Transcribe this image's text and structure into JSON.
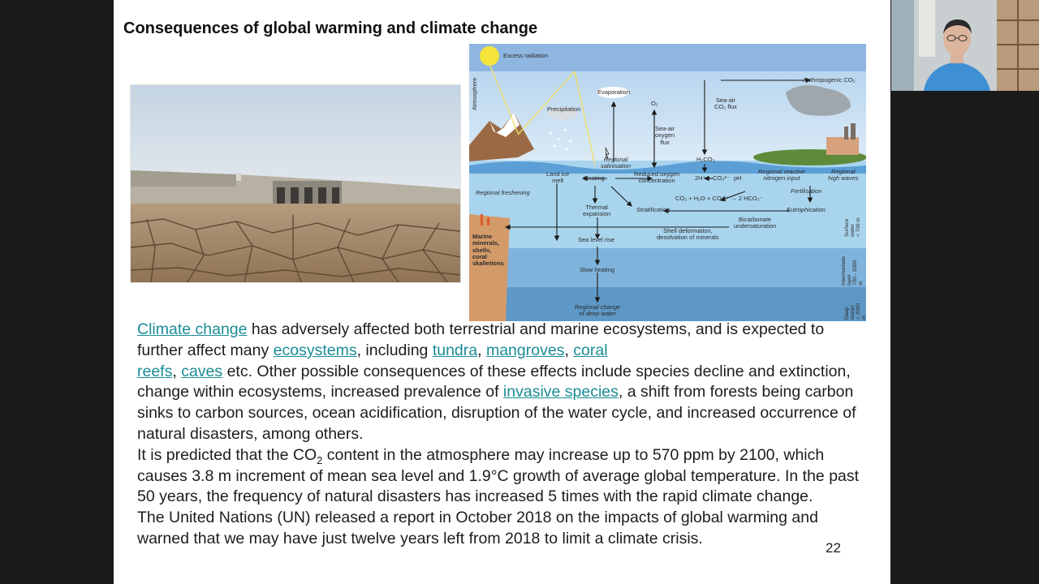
{
  "slide": {
    "title": "Consequences of global warming and climate change",
    "page_number": "22"
  },
  "diagram": {
    "labels": {
      "excess_radiation": "Excess radiation",
      "atmosphere": "Atmosphere",
      "precipitation": "Precipitation",
      "evaporation": "Evaporation",
      "o2": "O₂",
      "sea_air_oxygen_flux": "Sea-air\noxygen\nflux",
      "sea_air_co2_flux": "Sea-air\nCO₂ flux",
      "anthropogenic_co2": "Anthropogenic CO₂",
      "regional_salinisation": "Regional\nsalinisation",
      "land_ice_melt": "Land ice\nmelt",
      "heating": "Heating",
      "reduced_oxygen": "Reduced oxygen\nconcentration",
      "h2co3": "H₂CO₃",
      "carbonate_eq": "2H⁺ + CO₃²⁻",
      "ph": "pH",
      "regional_nitrogen": "Regional reactive\nnitrogen input",
      "regional_high_waves": "Regional\nhigh waves",
      "regional_freshening": "Regional freshening",
      "fertilisation": "Fertilisation",
      "co2_reaction": "CO₂ + H₂O + CO₃²⁻ → 2 HCO₃⁻",
      "thermal_expansion": "Thermal\nexpansion",
      "stratification": "Stratification",
      "eutrophication": "Eutrophication",
      "bicarbonate": "Bicarbonate\nundersaturation",
      "shell_deformation": "Shell deformation,\ndesolvation of minerals",
      "sea_level_rise": "Sea level rise",
      "marine_minerals": "Marine\nminerals,\nshells,\ncoral\nskalletions",
      "slow_heating": "Slow heating",
      "regional_change": "Regional change\nof deep water",
      "surface_water": "Surface water\n< 700 m",
      "intermediate": "Intermediate\nlayer\n700 - 2000 m",
      "deep_ocean": "Deep ocean\n> 2000 m"
    }
  },
  "body": {
    "p1": {
      "link_climate_change": "Climate change",
      "t1": " has adversely affected both terrestrial and marine ecosystems, and is expected to further affect many ",
      "link_ecosystems": "ecosystems",
      "t2": ", including ",
      "link_tundra": "tundra",
      "sep1": ", ",
      "link_mangroves": "mangroves",
      "sep2": ", ",
      "link_coral_reefs_1": "coral",
      "link_coral_reefs_2": "reefs",
      "sep3": ", ",
      "link_caves": "caves",
      "t3": " etc. Other possible consequences of these effects include species decline and extinction, change within ecosystems, increased prevalence of ",
      "link_invasive_species": "invasive species",
      "t4": ", a shift from forests being carbon sinks to carbon sources, ocean acidification, disruption of the water cycle, and increased occurrence of natural disasters, among others."
    },
    "p2": {
      "t1": "It is predicted that the CO",
      "sub": "2",
      "t2": " content in the atmosphere may increase up to 570 ppm by 2100, which causes 3.8 m increment of mean sea level and 1.9°C growth of average global temperature. In the past 50 years, the frequency of natural disasters has increased 5 times with the rapid climate change."
    },
    "p3": {
      "t1": "The United Nations (UN) released a report in October 2018 on the impacts of global warming and warned that we may have just twelve years left from 2018 to limit a climate crisis."
    }
  }
}
